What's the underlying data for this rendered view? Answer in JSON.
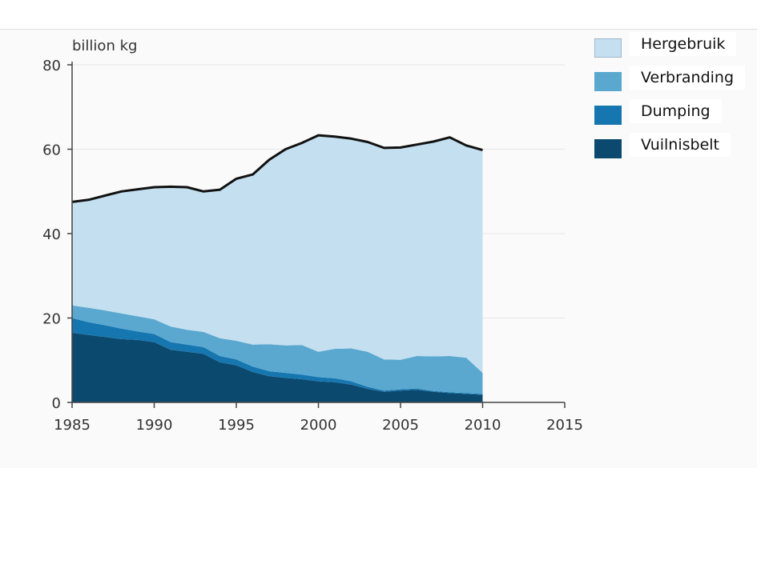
{
  "chart_data": {
    "type": "area",
    "stacked": true,
    "ylabel": "billion kg",
    "xlabel": "",
    "title": "",
    "xlim": [
      1985,
      2015
    ],
    "ylim": [
      0,
      80
    ],
    "x_ticks": [
      1985,
      1990,
      1995,
      2000,
      2005,
      2010,
      2015
    ],
    "y_ticks": [
      0,
      20,
      40,
      60,
      80
    ],
    "grid": true,
    "legend_position": "right",
    "x": [
      1985,
      1986,
      1987,
      1988,
      1989,
      1990,
      1991,
      1992,
      1993,
      1994,
      1995,
      1996,
      1997,
      1998,
      1999,
      2000,
      2001,
      2002,
      2003,
      2004,
      2005,
      2006,
      2007,
      2008,
      2009,
      2010
    ],
    "series": [
      {
        "name": "Vuilnisbelt",
        "color": "#0b4a6e",
        "values": [
          16.5,
          16,
          15.5,
          15,
          14.8,
          14.3,
          12.5,
          12,
          11.5,
          9.5,
          8.8,
          7.2,
          6.2,
          5.8,
          5.5,
          5,
          4.8,
          4.2,
          3.2,
          2.5,
          2.8,
          3,
          2.5,
          2.2,
          2.0,
          1.8
        ]
      },
      {
        "name": "Dumping",
        "color": "#1676b0",
        "values": [
          3.5,
          3,
          2.8,
          2.5,
          2,
          1.9,
          1.8,
          1.7,
          1.6,
          1.5,
          1.4,
          1.3,
          1.2,
          1.2,
          1.1,
          1,
          0.9,
          0.8,
          0.5,
          0.3,
          0.3,
          0.3,
          0.2,
          0.2,
          0.2,
          0.2
        ]
      },
      {
        "name": "Verbranding",
        "color": "#5aa8cf",
        "values": [
          3.0,
          3.4,
          3.5,
          3.6,
          3.6,
          3.5,
          3.7,
          3.5,
          3.6,
          4.2,
          4.4,
          5.2,
          6.4,
          6.5,
          7.0,
          6.0,
          7.0,
          7.8,
          8.3,
          7.4,
          7.0,
          7.7,
          8.2,
          8.6,
          8.4,
          5.0
        ]
      },
      {
        "name": "Hergebruik",
        "color": "#c4dff0",
        "values": [
          24.5,
          25.6,
          27.2,
          28.9,
          30.1,
          31.3,
          33.1,
          33.8,
          33.3,
          35.2,
          38.4,
          40.3,
          43.7,
          46.5,
          47.9,
          51.3,
          50.3,
          49.7,
          49.7,
          50.1,
          50.3,
          50.1,
          50.9,
          51.8,
          50.3,
          52.8
        ]
      }
    ],
    "total_line_color": "#111111"
  },
  "legend": {
    "items": [
      {
        "label": "Hergebruik",
        "color": "#c4dff0"
      },
      {
        "label": "Verbranding",
        "color": "#5aa8cf"
      },
      {
        "label": "Dumping",
        "color": "#1676b0"
      },
      {
        "label": "Vuilnisbelt",
        "color": "#0b4a6e"
      }
    ]
  }
}
